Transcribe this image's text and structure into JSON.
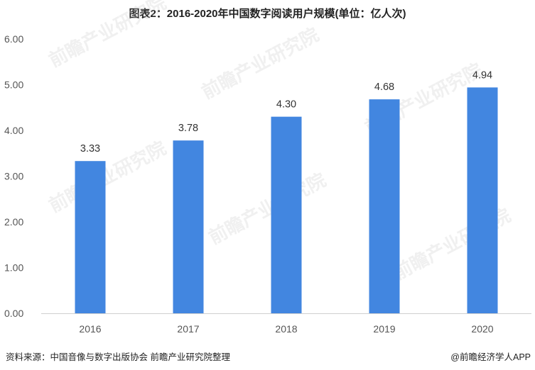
{
  "chart_data": {
    "type": "bar",
    "title": "图表2：2016-2020年中国数字阅读用户规模(单位：亿人次)",
    "categories": [
      "2016",
      "2017",
      "2018",
      "2019",
      "2020"
    ],
    "values": [
      3.33,
      3.78,
      4.3,
      4.68,
      4.94
    ],
    "value_labels": [
      "3.33",
      "3.78",
      "4.30",
      "4.68",
      "4.94"
    ],
    "y_ticks": [
      "0.00",
      "1.00",
      "2.00",
      "3.00",
      "4.00",
      "5.00",
      "6.00"
    ],
    "ylim": [
      0,
      6
    ],
    "grid": false,
    "bar_color": "#4286e0",
    "xlabel": "",
    "ylabel": ""
  },
  "footer": {
    "source": "资料来源：中国音像与数字出版协会 前瞻产业研究院整理",
    "credit": "@前瞻经济学人APP"
  },
  "watermark": {
    "text": "前瞻产业研究院"
  }
}
